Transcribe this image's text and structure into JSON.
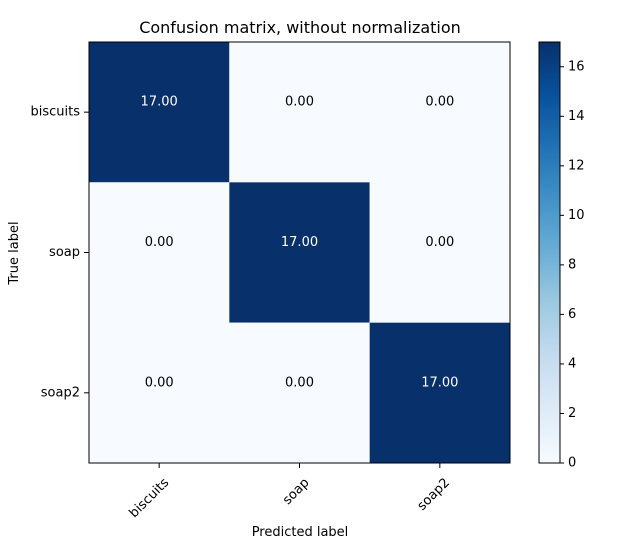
{
  "chart_data": {
    "type": "heatmap",
    "title": "Confusion matrix, without normalization",
    "xlabel": "Predicted label",
    "ylabel": "True label",
    "x_categories": [
      "biscuits",
      "soap",
      "soap2"
    ],
    "y_categories": [
      "biscuits",
      "soap",
      "soap2"
    ],
    "values": [
      [
        17,
        0,
        0
      ],
      [
        0,
        17,
        0
      ],
      [
        0,
        0,
        17
      ]
    ],
    "cell_labels": [
      [
        "17.00",
        "0.00",
        "0.00"
      ],
      [
        "0.00",
        "17.00",
        "0.00"
      ],
      [
        "0.00",
        "0.00",
        "17.00"
      ]
    ],
    "colorscale": "Blues",
    "color_low": "#f7fbff",
    "color_high": "#08306b",
    "text_color_on_dark": "#ffffff",
    "text_color_on_light": "#000000",
    "colorbar": {
      "range": [
        0,
        17
      ],
      "ticks": [
        "0",
        "2",
        "4",
        "6",
        "8",
        "10",
        "12",
        "14",
        "16"
      ]
    },
    "grid": false,
    "x_tick_rotation": 45
  }
}
